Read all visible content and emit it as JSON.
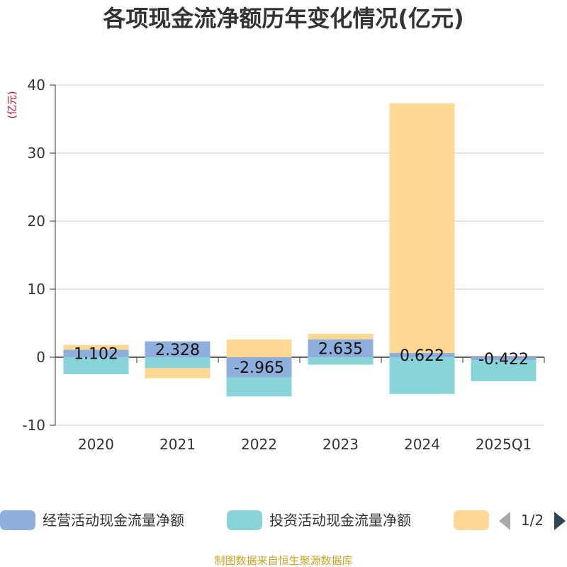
{
  "chart_data": {
    "type": "bar",
    "stacked": true,
    "title": "各项现金流净额历年变化情况(亿元)",
    "ylabel": "(亿元)",
    "ylim": [
      -10,
      40
    ],
    "yticks": [
      40,
      30,
      20,
      10,
      0,
      -10
    ],
    "grid": true,
    "categories": [
      "2020",
      "2021",
      "2022",
      "2023",
      "2024",
      "2025Q1"
    ],
    "series": [
      {
        "name": "经营活动现金流量净额",
        "color": "#8eaedb",
        "values": [
          1.102,
          2.328,
          -2.965,
          2.635,
          0.622,
          -0.422
        ],
        "labels": [
          "1.102",
          "2.328",
          "-2.965",
          "2.635",
          "0.622",
          "-0.422"
        ]
      },
      {
        "name": "投资活动现金流量净额",
        "color": "#88d4d8",
        "values": [
          -2.5,
          -1.6,
          -2.8,
          -1.1,
          -5.4,
          -3.1
        ],
        "labels": []
      },
      {
        "name": "",
        "color": "#fed894",
        "values": [
          0.7,
          -1.5,
          2.6,
          0.8,
          36.7,
          0.0
        ],
        "labels": []
      }
    ],
    "legend": {
      "position": "bottom",
      "page": "1/2"
    }
  },
  "footer": {
    "source": "制图数据来自恒生聚源数据库"
  }
}
